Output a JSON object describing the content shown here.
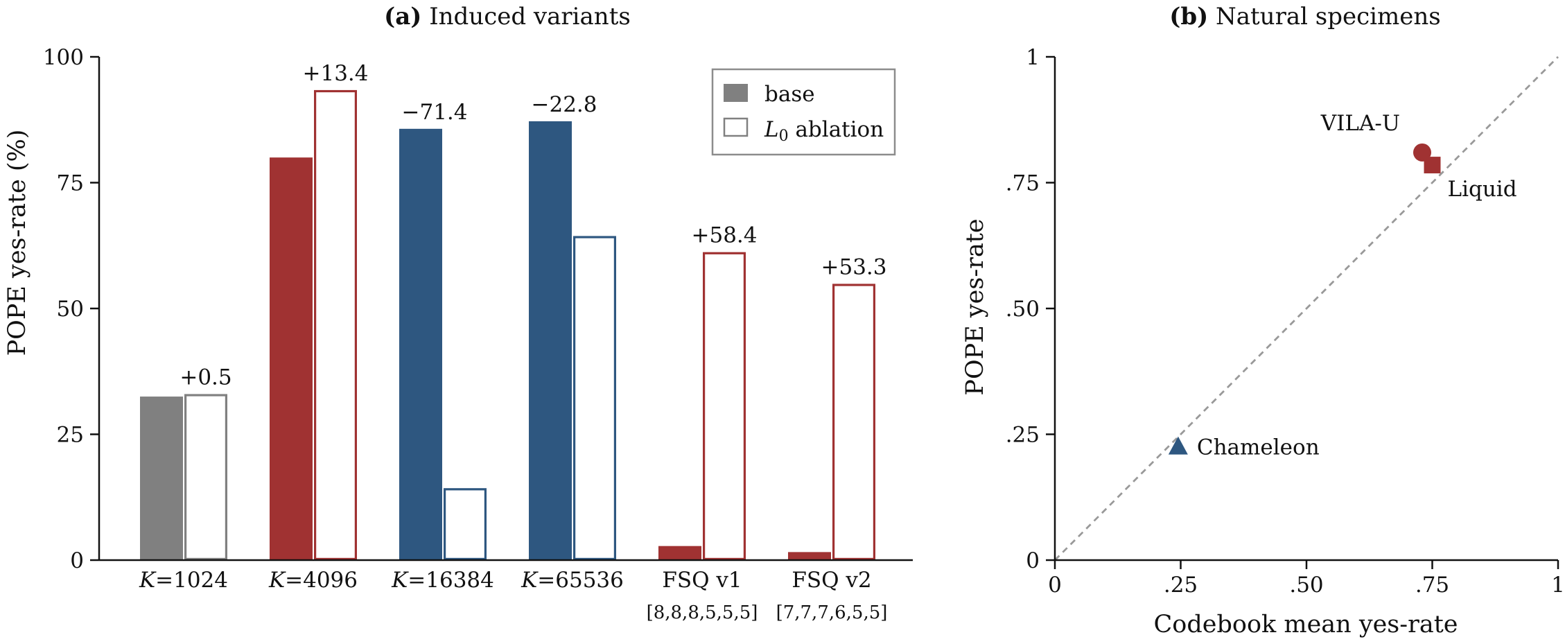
{
  "chart_data": [
    {
      "type": "bar",
      "title_bold": "(a)",
      "title": "Induced variants",
      "ylabel": "POPE yes-rate (%)",
      "ylim": [
        0,
        100
      ],
      "yticks": [
        0,
        25,
        50,
        75,
        100
      ],
      "categories": [
        {
          "line1_var": "K",
          "line1_rest": "=1024",
          "line2": ""
        },
        {
          "line1_var": "K",
          "line1_rest": "=4096",
          "line2": ""
        },
        {
          "line1_var": "K",
          "line1_rest": "=16384",
          "line2": ""
        },
        {
          "line1_var": "K",
          "line1_rest": "=65536",
          "line2": ""
        },
        {
          "line1_var": "",
          "line1_rest": "FSQ v1",
          "line2": "[8,8,8,5,5,5]"
        },
        {
          "line1_var": "",
          "line1_rest": "FSQ v2",
          "line2": "[7,7,7,6,5,5]"
        }
      ],
      "series": [
        {
          "name": "base",
          "values": [
            32.5,
            80.0,
            85.7,
            87.2,
            2.8,
            1.6
          ]
        },
        {
          "name": "L0 ablation",
          "values": [
            33.0,
            93.4,
            14.3,
            64.4,
            61.2,
            54.9
          ]
        }
      ],
      "bar_colors": [
        "#808080",
        "#a03232",
        "#2e5780",
        "#2e5780",
        "#a03232",
        "#a03232"
      ],
      "annotations": [
        "+0.5",
        "+13.4",
        "−71.4",
        "−22.8",
        "+58.4",
        "+53.3"
      ],
      "legend": {
        "position": "top-right",
        "entries": [
          {
            "label": "base",
            "style": "filled",
            "color": "#808080"
          },
          {
            "label_var": "L",
            "label_sub": "0",
            "label_rest": " ablation",
            "style": "outline",
            "color": "#808080"
          }
        ]
      }
    },
    {
      "type": "scatter",
      "title_bold": "(b)",
      "title": "Natural specimens",
      "xlabel": "Codebook mean yes-rate",
      "ylabel": "POPE yes-rate",
      "xlim": [
        0,
        1
      ],
      "ylim": [
        0,
        1
      ],
      "xticks": [
        {
          "v": 0,
          "label": "0"
        },
        {
          "v": 0.25,
          "label": ".25"
        },
        {
          "v": 0.5,
          "label": ".50"
        },
        {
          "v": 0.75,
          "label": ".75"
        },
        {
          "v": 1,
          "label": "1"
        }
      ],
      "yticks": [
        {
          "v": 0,
          "label": "0"
        },
        {
          "v": 0.25,
          "label": ".25"
        },
        {
          "v": 0.5,
          "label": ".50"
        },
        {
          "v": 0.75,
          "label": ".75"
        },
        {
          "v": 1,
          "label": "1"
        }
      ],
      "diagonal": true,
      "points": [
        {
          "label": "VILA-U",
          "x": 0.73,
          "y": 0.81,
          "marker": "circle",
          "color": "#a03232",
          "label_side": "upper-left"
        },
        {
          "label": "Liquid",
          "x": 0.75,
          "y": 0.785,
          "marker": "square",
          "color": "#a03232",
          "label_side": "lower-right"
        },
        {
          "label": "Chameleon",
          "x": 0.245,
          "y": 0.225,
          "marker": "triangle",
          "color": "#2e5780",
          "label_side": "right"
        }
      ]
    }
  ]
}
